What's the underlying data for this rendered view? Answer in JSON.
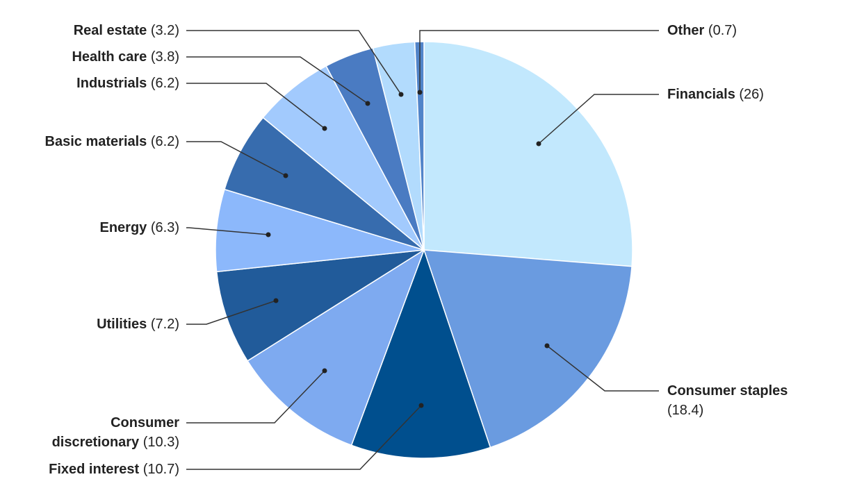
{
  "chart_data": {
    "type": "pie",
    "categories": [
      "Financials",
      "Consumer staples",
      "Fixed interest",
      "Consumer discretionary",
      "Utilities",
      "Energy",
      "Basic materials",
      "Industrials",
      "Health care",
      "Real estate",
      "Other"
    ],
    "values": [
      26,
      18.4,
      10.7,
      10.3,
      7.2,
      6.3,
      6.2,
      6.2,
      3.8,
      3.2,
      0.7
    ],
    "value_labels": [
      "(26)",
      "(18.4)",
      "(10.7)",
      "(10.3)",
      "(7.2)",
      "(6.3)",
      "(6.2)",
      "(6.2)",
      "(3.8)",
      "(3.2)",
      "(0.7)"
    ],
    "colors": [
      "#c2e8fd",
      "#6a9be0",
      "#004f8e",
      "#7eaaf0",
      "#215b9a",
      "#8cb8fb",
      "#376cae",
      "#a2cafd",
      "#4a7bc2",
      "#b2dbfd",
      "#5184c9"
    ]
  }
}
